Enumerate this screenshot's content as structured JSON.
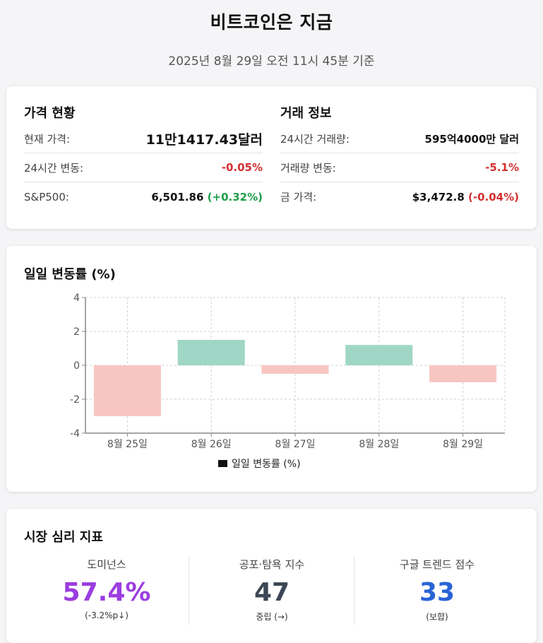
{
  "header": {
    "title": "비트코인은 지금",
    "subtitle": "2025년 8월 29일 오전 11시 45분 기준"
  },
  "price_status": {
    "title": "가격 현황",
    "rows": [
      {
        "label": "현재 가격:",
        "value": "11만1417.43달러"
      },
      {
        "label": "24시간 변동:",
        "value": "-0.05%"
      },
      {
        "label": "S&P500:",
        "value": "6,501.86",
        "change": "(+0.32%)"
      }
    ]
  },
  "trade_info": {
    "title": "거래 정보",
    "rows": [
      {
        "label": "24시간 거래량:",
        "value": "595억4000만 달러"
      },
      {
        "label": "거래량 변동:",
        "value": "-5.1%"
      },
      {
        "label": "금 가격:",
        "value": "$3,472.8",
        "change": "(-0.04%)"
      }
    ]
  },
  "colors": {
    "negative": "#d32f2f",
    "positive": "#1e9e4a",
    "bar_up": "#a0d6c5",
    "bar_down": "#f8c6c2",
    "dominance": "#9b3de0",
    "fear_greed": "#3b4754",
    "trend": "#2a63d6"
  },
  "chart_data": {
    "type": "bar",
    "title": "일일 변동률 (%)",
    "categories": [
      "8월 25일",
      "8월 26일",
      "8월 27일",
      "8월 28일",
      "8월 29일"
    ],
    "series": [
      {
        "name": "일일 변동률 (%)",
        "values": [
          -3.0,
          1.5,
          -0.5,
          1.2,
          -1.0
        ]
      }
    ],
    "ylim": [
      -4,
      4
    ],
    "yticks": [
      4,
      2,
      0,
      -2,
      -4
    ],
    "grid": true,
    "legend": "bottom"
  },
  "sentiment": {
    "title": "시장 심리 지표",
    "items": [
      {
        "label": "도미넌스",
        "value": "57.4%",
        "note": "(-3.2%p↓)"
      },
      {
        "label": "공포·탐욕 지수",
        "value": "47",
        "note": "중립 (→)"
      },
      {
        "label": "구글 트렌드 점수",
        "value": "33",
        "note": "(보합)"
      }
    ]
  }
}
